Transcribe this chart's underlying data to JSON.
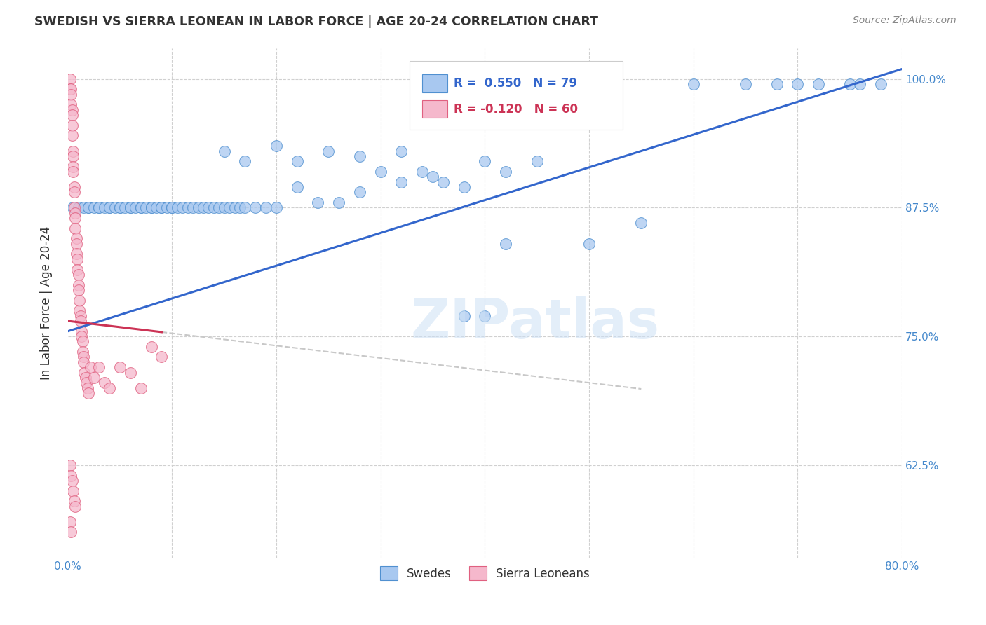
{
  "title": "SWEDISH VS SIERRA LEONEAN IN LABOR FORCE | AGE 20-24 CORRELATION CHART",
  "source": "Source: ZipAtlas.com",
  "ylabel": "In Labor Force | Age 20-24",
  "xlim": [
    0.0,
    0.8
  ],
  "ylim": [
    0.535,
    1.03
  ],
  "xticks": [
    0.0,
    0.1,
    0.2,
    0.3,
    0.4,
    0.5,
    0.6,
    0.7,
    0.8
  ],
  "xticklabels": [
    "0.0%",
    "",
    "",
    "",
    "",
    "",
    "",
    "",
    "80.0%"
  ],
  "yticks": [
    0.625,
    0.75,
    0.875,
    1.0
  ],
  "yticklabels": [
    "62.5%",
    "75.0%",
    "87.5%",
    "100.0%"
  ],
  "blue_R": 0.55,
  "blue_N": 79,
  "pink_R": -0.12,
  "pink_N": 60,
  "legend_labels": [
    "Swedes",
    "Sierra Leoneans"
  ],
  "blue_color": "#a8c8f0",
  "pink_color": "#f5b8cc",
  "blue_edge_color": "#5090d0",
  "pink_edge_color": "#e06080",
  "blue_line_color": "#3366cc",
  "pink_line_color": "#cc3355",
  "dashed_line_color": "#c8c8c8",
  "grid_color": "#d0d0d0",
  "title_color": "#333333",
  "axis_label_color": "#333333",
  "tick_color": "#4488cc",
  "watermark": "ZIPatlas",
  "blue_x": [
    0.005,
    0.01,
    0.015,
    0.02,
    0.02,
    0.025,
    0.03,
    0.03,
    0.035,
    0.04,
    0.04,
    0.045,
    0.05,
    0.05,
    0.055,
    0.06,
    0.06,
    0.065,
    0.07,
    0.07,
    0.075,
    0.08,
    0.08,
    0.085,
    0.09,
    0.09,
    0.095,
    0.1,
    0.1,
    0.105,
    0.11,
    0.115,
    0.12,
    0.125,
    0.13,
    0.135,
    0.14,
    0.145,
    0.15,
    0.155,
    0.16,
    0.165,
    0.17,
    0.18,
    0.19,
    0.2,
    0.22,
    0.24,
    0.26,
    0.28,
    0.3,
    0.32,
    0.34,
    0.36,
    0.38,
    0.4,
    0.42,
    0.45,
    0.5,
    0.55,
    0.6,
    0.65,
    0.68,
    0.7,
    0.72,
    0.75,
    0.76,
    0.78,
    0.38,
    0.4,
    0.25,
    0.28,
    0.32,
    0.35,
    0.2,
    0.22,
    0.15,
    0.17,
    0.42
  ],
  "blue_y": [
    0.875,
    0.875,
    0.875,
    0.875,
    0.875,
    0.875,
    0.875,
    0.875,
    0.875,
    0.875,
    0.875,
    0.875,
    0.875,
    0.875,
    0.875,
    0.875,
    0.875,
    0.875,
    0.875,
    0.875,
    0.875,
    0.875,
    0.875,
    0.875,
    0.875,
    0.875,
    0.875,
    0.875,
    0.875,
    0.875,
    0.875,
    0.875,
    0.875,
    0.875,
    0.875,
    0.875,
    0.875,
    0.875,
    0.875,
    0.875,
    0.875,
    0.875,
    0.875,
    0.875,
    0.875,
    0.875,
    0.895,
    0.88,
    0.88,
    0.89,
    0.91,
    0.9,
    0.91,
    0.9,
    0.895,
    0.92,
    0.91,
    0.92,
    0.84,
    0.86,
    0.995,
    0.995,
    0.995,
    0.995,
    0.995,
    0.995,
    0.995,
    0.995,
    0.77,
    0.77,
    0.93,
    0.925,
    0.93,
    0.905,
    0.935,
    0.92,
    0.93,
    0.92,
    0.84
  ],
  "pink_x": [
    0.002,
    0.002,
    0.003,
    0.003,
    0.003,
    0.004,
    0.004,
    0.004,
    0.004,
    0.005,
    0.005,
    0.005,
    0.005,
    0.006,
    0.006,
    0.006,
    0.007,
    0.007,
    0.007,
    0.008,
    0.008,
    0.008,
    0.009,
    0.009,
    0.01,
    0.01,
    0.01,
    0.011,
    0.011,
    0.012,
    0.012,
    0.013,
    0.013,
    0.014,
    0.014,
    0.015,
    0.015,
    0.016,
    0.017,
    0.018,
    0.019,
    0.02,
    0.022,
    0.025,
    0.03,
    0.035,
    0.04,
    0.05,
    0.06,
    0.07,
    0.002,
    0.003,
    0.004,
    0.005,
    0.006,
    0.007,
    0.002,
    0.003,
    0.08,
    0.09
  ],
  "pink_y": [
    1.0,
    0.99,
    0.99,
    0.985,
    0.975,
    0.97,
    0.965,
    0.955,
    0.945,
    0.93,
    0.925,
    0.915,
    0.91,
    0.895,
    0.89,
    0.875,
    0.87,
    0.865,
    0.855,
    0.845,
    0.84,
    0.83,
    0.825,
    0.815,
    0.81,
    0.8,
    0.795,
    0.785,
    0.775,
    0.77,
    0.765,
    0.755,
    0.75,
    0.745,
    0.735,
    0.73,
    0.725,
    0.715,
    0.71,
    0.705,
    0.7,
    0.695,
    0.72,
    0.71,
    0.72,
    0.705,
    0.7,
    0.72,
    0.715,
    0.7,
    0.625,
    0.615,
    0.61,
    0.6,
    0.59,
    0.585,
    0.57,
    0.56,
    0.74,
    0.73
  ]
}
